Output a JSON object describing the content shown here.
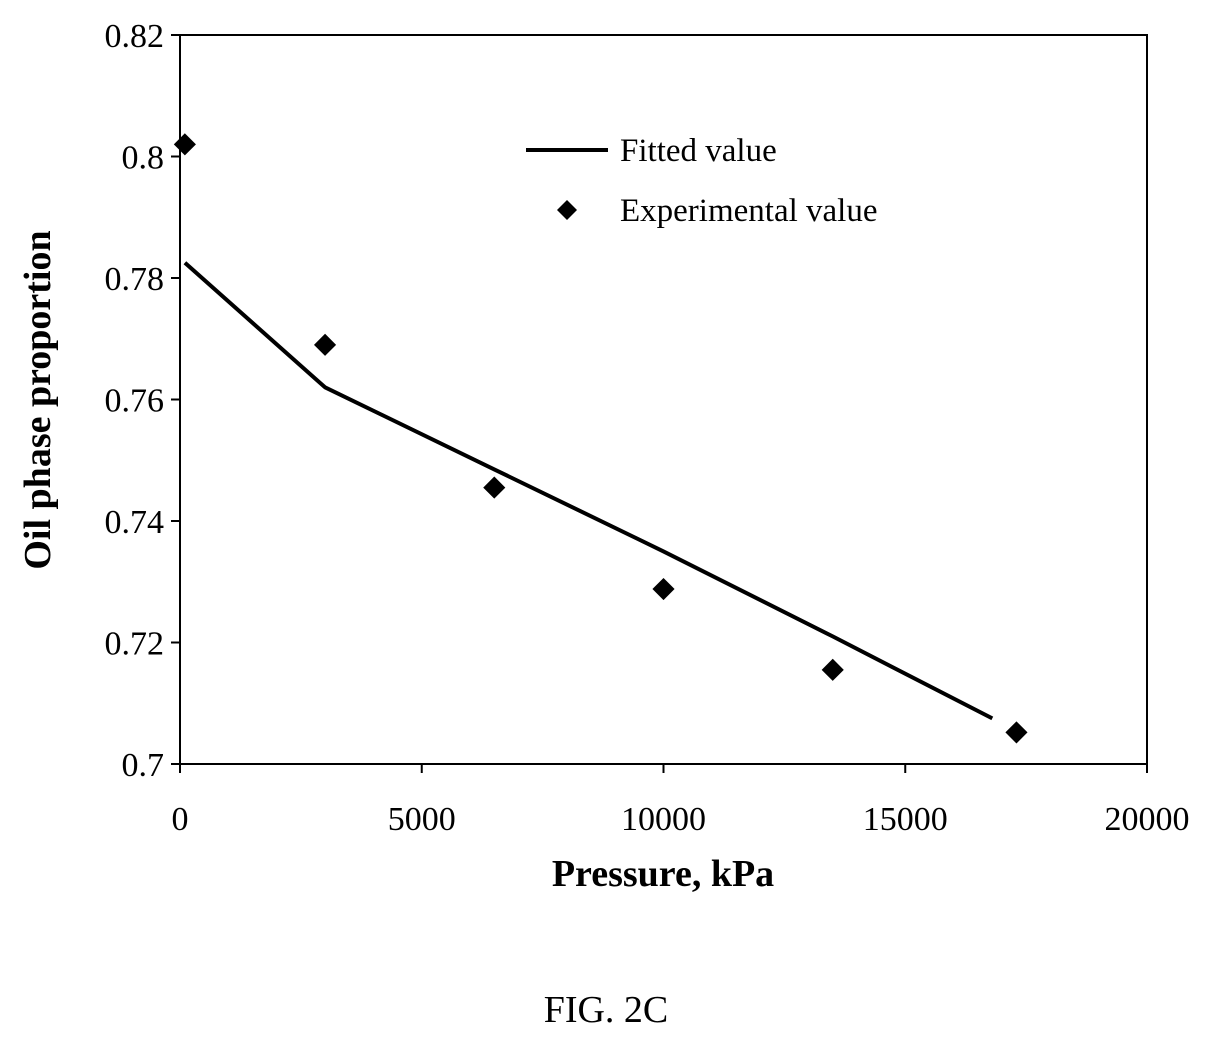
{
  "chart_data": {
    "type": "line",
    "title": "",
    "xlabel": "Pressure, kPa",
    "ylabel": "Oil phase proportion",
    "xlim": [
      0,
      20000
    ],
    "ylim": [
      0.7,
      0.82
    ],
    "x_ticks": [
      0,
      5000,
      10000,
      15000,
      20000
    ],
    "x_tick_labels": [
      "0",
      "5000",
      "10000",
      "15000",
      "20000"
    ],
    "y_ticks": [
      0.7,
      0.72,
      0.74,
      0.76,
      0.78,
      0.8,
      0.82
    ],
    "y_tick_labels": [
      "0.7",
      "0.72",
      "0.74",
      "0.76",
      "0.78",
      "0.8",
      "0.82"
    ],
    "grid": false,
    "legend_position": "top-center",
    "series": [
      {
        "name": "Fitted value",
        "kind": "line",
        "color": "#000000",
        "x": [
          101,
          3000,
          6500,
          10000,
          13500,
          16800
        ],
        "y": [
          0.7825,
          0.762,
          0.7485,
          0.735,
          0.721,
          0.7075
        ]
      },
      {
        "name": "Experimental value",
        "kind": "scatter",
        "marker": "diamond",
        "color": "#000000",
        "x": [
          101,
          3000,
          6500,
          10000,
          13500,
          17300
        ],
        "y": [
          0.802,
          0.769,
          0.7455,
          0.7288,
          0.7155,
          0.7052
        ]
      }
    ]
  },
  "caption": "FIG. 2C"
}
